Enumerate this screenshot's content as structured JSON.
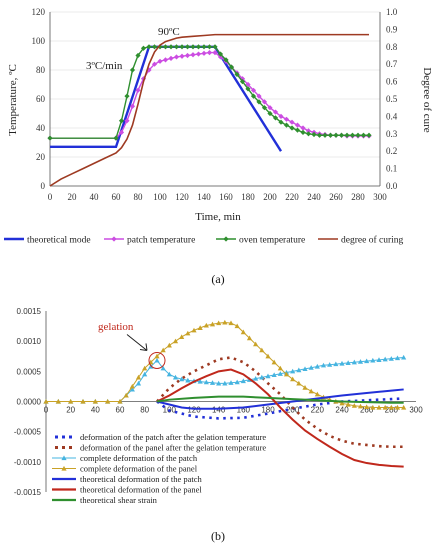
{
  "chart_data": [
    {
      "type": "line",
      "xlabel": "Time, min",
      "ylabel": "Temperature, ºC",
      "y2label": "Degree of cure",
      "xlim": [
        0,
        300
      ],
      "ylim": [
        0,
        120
      ],
      "y2lim": [
        0,
        1.0
      ],
      "xticks": [
        0,
        20,
        40,
        60,
        80,
        100,
        120,
        140,
        160,
        180,
        200,
        220,
        240,
        260,
        280,
        300
      ],
      "yticks": [
        0,
        20,
        40,
        60,
        80,
        100,
        120
      ],
      "y2ticks": [
        "0.0",
        "0.1",
        "0.2",
        "0.3",
        "0.4",
        "0.5",
        "0.6",
        "0.7",
        "0.8",
        "0.9",
        "1.0"
      ],
      "annotations": [
        "3ºC/min",
        "90ºC"
      ],
      "caption": "(a)",
      "legend_position": "bottom",
      "series": [
        {
          "name": "theoretical mode",
          "color": "#2230d8",
          "marker": "none",
          "axis": "left",
          "x": [
            0,
            60,
            90,
            150,
            210
          ],
          "y": [
            27,
            27,
            96,
            96,
            24
          ]
        },
        {
          "name": "patch temperature",
          "color": "#cc4de2",
          "marker": "diamond",
          "axis": "left",
          "x": [
            0,
            60,
            65,
            70,
            75,
            80,
            85,
            90,
            95,
            100,
            105,
            110,
            115,
            120,
            125,
            130,
            135,
            140,
            145,
            150,
            155,
            160,
            165,
            170,
            175,
            180,
            185,
            190,
            195,
            200,
            205,
            210,
            215,
            220,
            225,
            230,
            235,
            240,
            245,
            250,
            255,
            260,
            265,
            270,
            275,
            280,
            285,
            290
          ],
          "y": [
            33,
            33,
            37,
            45,
            55,
            66,
            74,
            80,
            84,
            86,
            87,
            88,
            89,
            89.5,
            90,
            90.5,
            91,
            91.5,
            92,
            92,
            89,
            86,
            82,
            78,
            74,
            70,
            66,
            62,
            58,
            54,
            51,
            48,
            46,
            44,
            42,
            40,
            38,
            37,
            36,
            35.5,
            35,
            35,
            35,
            34.5,
            34.5,
            34.5,
            34.5,
            34.5
          ]
        },
        {
          "name": "oven temperature",
          "color": "#2f8f2f",
          "marker": "diamond",
          "axis": "left",
          "x": [
            0,
            60,
            65,
            70,
            75,
            80,
            85,
            90,
            95,
            100,
            105,
            110,
            115,
            120,
            125,
            130,
            135,
            140,
            145,
            150,
            155,
            160,
            165,
            170,
            175,
            180,
            185,
            190,
            195,
            200,
            205,
            210,
            215,
            220,
            225,
            230,
            235,
            240,
            245,
            250,
            255,
            260,
            265,
            270,
            275,
            280,
            285,
            290
          ],
          "y": [
            33,
            33,
            45,
            62,
            80,
            90,
            95,
            96,
            96,
            96,
            96,
            96,
            96,
            96,
            96,
            96,
            96,
            96,
            96,
            96,
            91,
            87,
            82,
            77,
            72,
            67,
            62,
            58,
            54,
            50,
            47,
            44,
            42,
            40,
            38.5,
            37,
            36,
            35.5,
            35,
            35,
            35,
            35,
            35,
            35,
            35,
            35,
            35,
            35
          ]
        },
        {
          "name": "degree of curing",
          "color": "#9e3a22",
          "marker": "none",
          "axis": "right",
          "x": [
            0,
            10,
            20,
            30,
            40,
            50,
            60,
            65,
            70,
            75,
            80,
            85,
            90,
            95,
            100,
            105,
            110,
            115,
            120,
            130,
            140,
            150,
            160,
            200,
            250,
            290
          ],
          "y": [
            0.0,
            0.04,
            0.07,
            0.1,
            0.13,
            0.16,
            0.19,
            0.22,
            0.27,
            0.35,
            0.47,
            0.6,
            0.7,
            0.77,
            0.81,
            0.83,
            0.84,
            0.85,
            0.855,
            0.86,
            0.865,
            0.87,
            0.87,
            0.87,
            0.87,
            0.87
          ]
        }
      ]
    },
    {
      "type": "line",
      "xlim": [
        0,
        300
      ],
      "ylim": [
        -0.0015,
        0.0015
      ],
      "xticks": [
        0,
        20,
        40,
        60,
        80,
        100,
        120,
        140,
        160,
        180,
        200,
        220,
        240,
        260,
        280,
        300
      ],
      "yticks": [
        "0.0015",
        "0.0010",
        "0.0005",
        "0.0000",
        "-0.0005",
        "-0.0010",
        "-0.0015"
      ],
      "annotations": [
        "gelation"
      ],
      "caption": "(b)",
      "legend_position": "bottom",
      "series": [
        {
          "name": "deformation of the patch after the gelation temperature",
          "color": "#2230d8",
          "style": "dotted",
          "x": [
            90,
            100,
            120,
            140,
            160,
            180,
            200,
            220,
            240,
            260,
            280,
            290
          ],
          "y": [
            0.0,
            -0.00015,
            -0.00025,
            -0.00028,
            -0.00027,
            -0.0002,
            -0.00012,
            -5e-05,
            0.0,
            2e-05,
            4e-05,
            5e-05
          ]
        },
        {
          "name": "deformation of the panel after the gelation temperature",
          "color": "#9e3a22",
          "style": "dotted",
          "x": [
            90,
            100,
            110,
            120,
            130,
            140,
            150,
            160,
            170,
            180,
            190,
            200,
            210,
            220,
            230,
            240,
            250,
            260,
            270,
            280,
            290
          ],
          "y": [
            0.0,
            0.00022,
            0.00038,
            0.0005,
            0.0006,
            0.0007,
            0.00073,
            0.00065,
            0.0005,
            0.0003,
            0.00012,
            -0.0001,
            -0.0003,
            -0.00045,
            -0.00057,
            -0.00065,
            -0.0007,
            -0.00072,
            -0.00074,
            -0.00075,
            -0.00075
          ]
        },
        {
          "name": "complete deformation of the patch",
          "color": "#46b4e0",
          "marker": "triangle",
          "x": [
            0,
            10,
            20,
            30,
            40,
            50,
            60,
            65,
            70,
            75,
            80,
            85,
            90,
            95,
            100,
            105,
            110,
            115,
            120,
            125,
            130,
            135,
            140,
            145,
            150,
            155,
            160,
            165,
            170,
            175,
            180,
            185,
            190,
            195,
            200,
            205,
            210,
            215,
            220,
            225,
            230,
            235,
            240,
            245,
            250,
            255,
            260,
            265,
            270,
            275,
            280,
            285,
            290
          ],
          "y": [
            0,
            0,
            0,
            0,
            0,
            0,
            0,
            0.0001,
            0.0002,
            0.0003,
            0.00045,
            0.00058,
            0.00068,
            0.00055,
            0.00045,
            0.0004,
            0.00037,
            0.00035,
            0.00034,
            0.00033,
            0.00032,
            0.00031,
            0.0003,
            0.0003,
            0.00031,
            0.00032,
            0.00034,
            0.00036,
            0.00038,
            0.0004,
            0.00042,
            0.00044,
            0.00046,
            0.00048,
            0.0005,
            0.00052,
            0.00054,
            0.00056,
            0.00058,
            0.0006,
            0.00061,
            0.00062,
            0.00063,
            0.00064,
            0.00065,
            0.00066,
            0.00067,
            0.00068,
            0.00069,
            0.0007,
            0.00071,
            0.00072,
            0.00073
          ]
        },
        {
          "name": "complete deformation of the panel",
          "color": "#c9a227",
          "marker": "triangle",
          "x": [
            0,
            10,
            20,
            30,
            40,
            50,
            60,
            65,
            70,
            75,
            80,
            85,
            90,
            95,
            100,
            105,
            110,
            115,
            120,
            125,
            130,
            135,
            140,
            145,
            150,
            155,
            160,
            165,
            170,
            175,
            180,
            185,
            190,
            195,
            200,
            205,
            210,
            215,
            220,
            225,
            230,
            235,
            240,
            245,
            250,
            255,
            260,
            265,
            270,
            275,
            280,
            285,
            290
          ],
          "y": [
            0,
            0,
            0,
            0,
            0,
            0,
            0,
            0.0001,
            0.00025,
            0.0004,
            0.00055,
            0.00065,
            0.00075,
            0.00085,
            0.00093,
            0.001,
            0.00107,
            0.00113,
            0.00118,
            0.00122,
            0.00126,
            0.00128,
            0.0013,
            0.00131,
            0.0013,
            0.00125,
            0.00115,
            0.00105,
            0.00095,
            0.00085,
            0.00075,
            0.00065,
            0.00055,
            0.00045,
            0.00037,
            0.0003,
            0.00023,
            0.00017,
            0.00012,
            7e-05,
            3e-05,
            0.0,
            -3e-05,
            -5e-05,
            -7e-05,
            -8e-05,
            -9e-05,
            -0.0001,
            -0.0001,
            -0.0001,
            -0.0001,
            -0.0001,
            -0.0001
          ]
        },
        {
          "name": "theoretical deformation of the patch",
          "color": "#2230d8",
          "style": "solid",
          "x": [
            90,
            100,
            110,
            120,
            140,
            160,
            180,
            200,
            220,
            240,
            260,
            280,
            290
          ],
          "y": [
            0.0,
            -5e-05,
            -0.0001,
            -0.00012,
            -0.00012,
            -0.0001,
            -5e-05,
            0.0,
            5e-05,
            0.0001,
            0.00014,
            0.00018,
            0.0002
          ]
        },
        {
          "name": "theoretical deformation of the panel",
          "color": "#c0281c",
          "style": "solid",
          "x": [
            90,
            100,
            110,
            120,
            130,
            140,
            150,
            160,
            170,
            180,
            190,
            200,
            210,
            220,
            230,
            240,
            250,
            260,
            270,
            280,
            290
          ],
          "y": [
            0.0,
            0.0001,
            0.00022,
            0.00033,
            0.00042,
            0.0005,
            0.00053,
            0.00045,
            0.0003,
            0.00012,
            -0.0001,
            -0.0003,
            -0.00048,
            -0.00062,
            -0.00075,
            -0.00087,
            -0.00097,
            -0.00102,
            -0.00105,
            -0.00107,
            -0.00108
          ]
        },
        {
          "name": "theoretical shear strain",
          "color": "#2f8f2f",
          "style": "solid",
          "x": [
            90,
            100,
            120,
            140,
            160,
            180,
            200,
            220,
            240,
            260,
            280,
            290
          ],
          "y": [
            0.0,
            3e-05,
            6e-05,
            8e-05,
            8e-05,
            6e-05,
            4e-05,
            2e-05,
            0.0,
            -1e-05,
            -2e-05,
            -2e-05
          ]
        }
      ]
    }
  ]
}
